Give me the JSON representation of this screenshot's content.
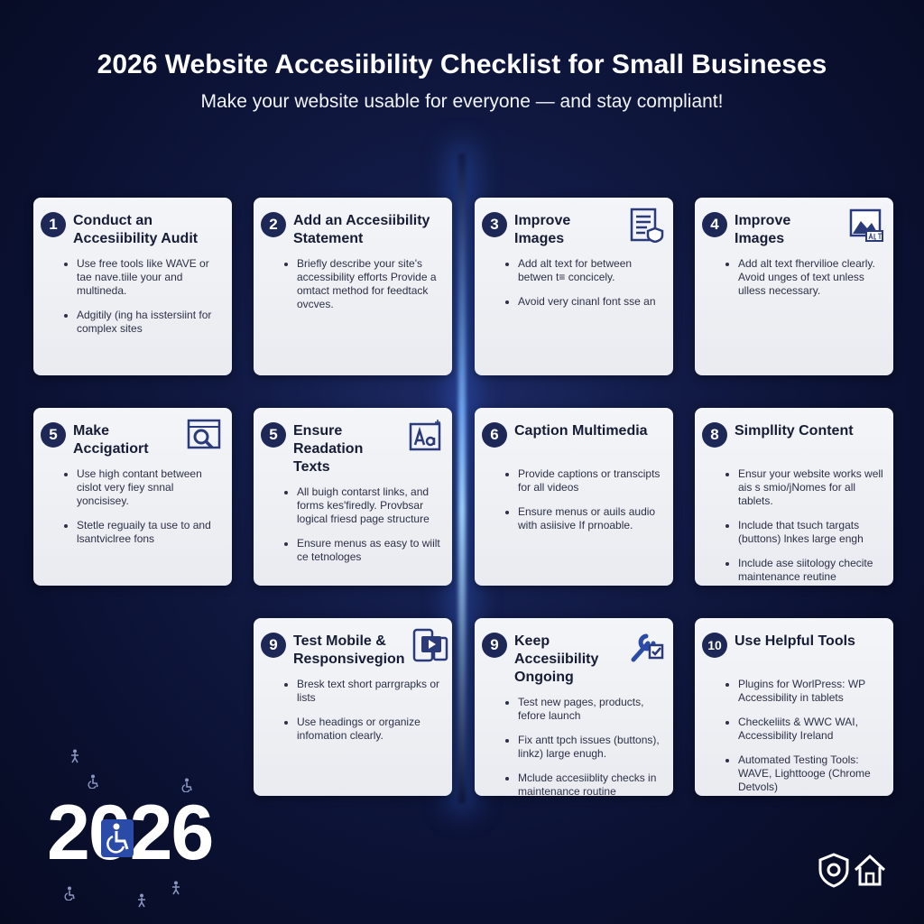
{
  "header": {
    "title": "2026 Website Accesiibility Checklist for Small Busineses",
    "subtitle": "Make your website usable for everyone — and stay compliant!"
  },
  "colors": {
    "background": "#0a1030",
    "card": "#eef0f4",
    "badge": "#1e2857",
    "icon": "#2a3a7a",
    "beam": "#78b4ff"
  },
  "cards": [
    {
      "number": "1",
      "title": "Conduct an Accesiibility Audit",
      "icon": "",
      "bullets": [
        "Use free tools like WAVE or tae nave.tiile your and multineda.",
        "Adgitily (ing ha isstersiint for complex sites"
      ]
    },
    {
      "number": "2",
      "title": "Add an Accesiibility Statement",
      "icon": "",
      "bullets": [
        "Briefly describe your site's accessibility efforts Provide a omtact method for feedtack ovcves."
      ]
    },
    {
      "number": "3",
      "title": "Improve Images",
      "icon": "document-shield-icon",
      "bullets": [
        "Add alt text for between betwen t≡ concicely.",
        "Avoid very cinanl font sse an"
      ]
    },
    {
      "number": "4",
      "title": "Improve Images",
      "icon": "image-alt-icon",
      "bullets": [
        "Add alt text fhervilioe clearly. Avoid unges of text unless ulless necessary."
      ]
    },
    {
      "number": "5",
      "title": "Make Accigatiort",
      "icon": "browser-search-icon",
      "bullets": [
        "Use high contant between cislot very fiey snnal yoncisisey.",
        "Stetle reguaily ta use to and lsantviclree fons"
      ]
    },
    {
      "number": "5",
      "title": "Ensure Readation Texts",
      "icon": "text-size-icon",
      "bullets": [
        "All buigh contarst links, and forms kes'firedly. Provbsar logical friesd page structure",
        "Ensure menus as easy to wiilt ce tetnologes"
      ]
    },
    {
      "number": "6",
      "title": "Caption Multimedia",
      "icon": "",
      "bullets": [
        "Provide captions or transcipts for all videos",
        "Ensure menus or auils audio with asiisive If prnoable."
      ]
    },
    {
      "number": "8",
      "title": "Simpllity Content",
      "icon": "",
      "bullets": [
        "Ensur your website works well ais s smio/jNomes for all tablets.",
        "Include that tsuch targats (buttons) lnkes large engh",
        "Include ase siitology checite maintenance reutine"
      ]
    },
    {
      "number": "9",
      "title": "Test Mobile & Responsivegion",
      "icon": "devices-video-icon",
      "bullets": [
        "Bresk text short parrgrapks or lists",
        "Use headings or organize infomation clearly."
      ]
    },
    {
      "number": "9",
      "title": "Keep Accesiibility Ongoing",
      "icon": "wrench-check-icon",
      "bullets": [
        "Test new pages, products, fefore launch",
        "Fix antt tpch issues (buttons), linkz) large enugh.",
        "Mclude accesiiblity checks in maintenance routine"
      ]
    },
    {
      "number": "10",
      "title": "Use Helpful Tools",
      "icon": "",
      "bullets": [
        "Plugins for WorlPress: WP Accessibility in tablets",
        "Checkeliits & WWC WAI, Accessibility Ireland",
        "Automated Testing Tools: WAVE, Lighttooge (Chrome Detvols)"
      ]
    }
  ],
  "footer": {
    "year": "2026",
    "icons": [
      "wheelchair-icon",
      "shield-gear-icon",
      "house-icon"
    ]
  }
}
